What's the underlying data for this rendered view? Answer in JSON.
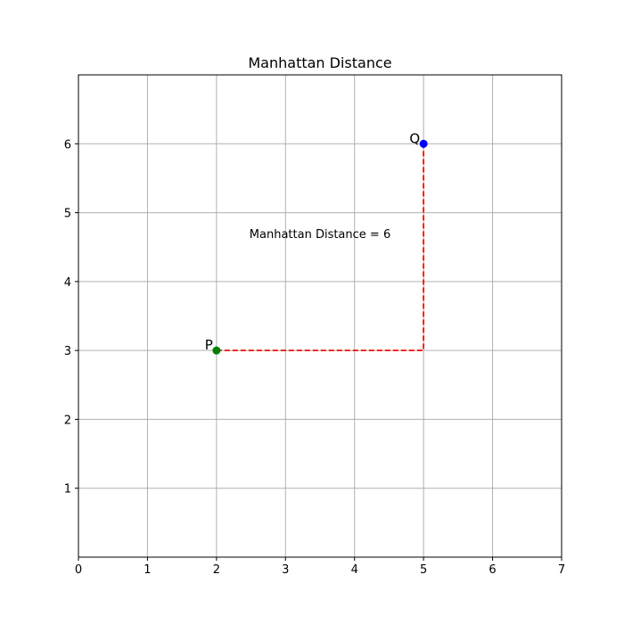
{
  "chart_data": {
    "type": "scatter",
    "title": "Manhattan Distance",
    "xlabel": "",
    "ylabel": "",
    "xlim": [
      0,
      7
    ],
    "ylim": [
      0,
      7
    ],
    "xticks": [
      0,
      1,
      2,
      3,
      4,
      5,
      6,
      7
    ],
    "yticks": [
      1,
      2,
      3,
      4,
      5,
      6
    ],
    "grid": true,
    "points": [
      {
        "label": "P",
        "x": 2,
        "y": 3,
        "color": "#008000"
      },
      {
        "label": "Q",
        "x": 5,
        "y": 6,
        "color": "#0000ff"
      }
    ],
    "path": {
      "color": "#ff0000",
      "style": "dashed",
      "vertices": [
        [
          2,
          3
        ],
        [
          5,
          3
        ],
        [
          5,
          6
        ]
      ]
    },
    "annotation": {
      "text": "Manhattan Distance = 6",
      "x": 3.5,
      "y": 4.7
    }
  }
}
